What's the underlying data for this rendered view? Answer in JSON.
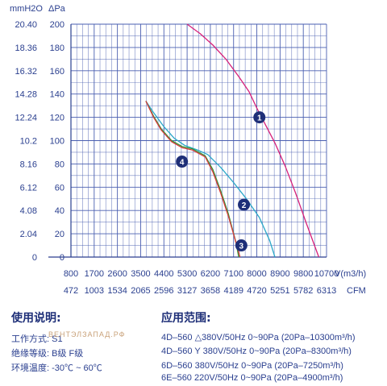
{
  "chart_data": {
    "type": "line",
    "left_unit": "mmH2O",
    "pressure_unit": "ΔPa",
    "flow_unit": "V(m3/h)",
    "cfm_unit": "CFM",
    "ylim": [
      0,
      200
    ],
    "xlim": [
      800,
      10700
    ],
    "y_ticks_pa": [
      "0",
      "20",
      "40",
      "60",
      "80",
      "100",
      "120",
      "140",
      "160",
      "180",
      "200"
    ],
    "y_ticks_mmh2o": [
      "0",
      "2.04",
      "4.08",
      "6.12",
      "8.16",
      "10.2",
      "12.24",
      "14.28",
      "16.32",
      "18.36",
      "20.40"
    ],
    "x_ticks_m3h": [
      "800",
      "1700",
      "2600",
      "3500",
      "4400",
      "5300",
      "6200",
      "7100",
      "8000",
      "8900",
      "9800",
      "10700"
    ],
    "x_ticks_cfm": [
      "472",
      "1003",
      "1534",
      "2065",
      "2596",
      "3127",
      "3658",
      "4189",
      "4720",
      "5251",
      "5782",
      "6313"
    ],
    "grid": true,
    "series": [
      {
        "name": "1",
        "color": "#d6207a",
        "x": [
          5300,
          5800,
          6300,
          6800,
          7300,
          7700,
          8000,
          8300,
          8700,
          9100,
          9500,
          9900,
          10400
        ],
        "y": [
          200,
          192,
          182,
          170,
          155,
          142,
          128,
          115,
          98,
          78,
          55,
          30,
          0
        ]
      },
      {
        "name": "2",
        "color": "#2aa7c8",
        "x": [
          3700,
          4000,
          4400,
          4800,
          5200,
          5700,
          6100,
          6600,
          7100,
          7600,
          8100,
          8500,
          8700
        ],
        "y": [
          134,
          124,
          112,
          102,
          96,
          92,
          88,
          77,
          64,
          50,
          34,
          14,
          0
        ]
      },
      {
        "name": "3",
        "color": "#2f9a3a",
        "x": [
          3700,
          4000,
          4300,
          4700,
          5100,
          5500,
          6000,
          6300,
          6600,
          6900,
          7200,
          7300
        ],
        "y": [
          134,
          121,
          110,
          100,
          95,
          93,
          87,
          75,
          57,
          37,
          12,
          0
        ]
      },
      {
        "name": "4",
        "color": "#d63a3a",
        "x": [
          3700,
          4000,
          4300,
          4700,
          5100,
          5500,
          6000,
          6300,
          6600,
          6900,
          7200,
          7350
        ],
        "y": [
          134,
          120,
          109,
          99,
          94,
          92,
          86,
          73,
          55,
          35,
          12,
          0
        ]
      }
    ]
  },
  "usage": {
    "title": "使用说明:",
    "rows": [
      "工作方式: S1",
      "绝缘等级: B级  F级",
      "环境温度: -30℃ ~ 60℃"
    ]
  },
  "range": {
    "title": "应用范围:",
    "rows": [
      "4D–560  △380V/50Hz  0~90Pa  (20Pa–10300m³/h)",
      "4D–560  Y 380V/50Hz  0~90Pa  (20Pa–8300m³/h)",
      "6D–560     380V/50Hz  0~90Pa  (20Pa–7250m³/h)",
      "6E–560     220V/50Hz  0~90Pa  (20Pa–4900m³/h)"
    ]
  },
  "watermark": "ВЕНТЭЛЗАПАД.РФ"
}
